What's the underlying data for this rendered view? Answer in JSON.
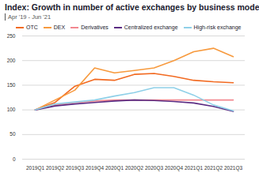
{
  "chart_data": {
    "type": "line",
    "title": "Index: Growth in number of active exchanges by business model",
    "subtitle": "Apr '19 - Jun '21",
    "categories": [
      "2019Q1",
      "2019Q2",
      "2019Q3",
      "2019Q4",
      "2020Q1",
      "2020Q2",
      "2020Q3",
      "2020Q4",
      "2021Q1",
      "2021Q2",
      "2021Q3"
    ],
    "series": [
      {
        "name": "OTC",
        "color": "#f26a21",
        "values": [
          100,
          115,
          148,
          162,
          160,
          172,
          174,
          168,
          160,
          157,
          155
        ]
      },
      {
        "name": "DEX",
        "color": "#f79a3e",
        "values": [
          100,
          120,
          140,
          185,
          175,
          180,
          185,
          200,
          218,
          225,
          208
        ]
      },
      {
        "name": "Derivatives",
        "color": "#f2878f",
        "values": [
          100,
          110,
          115,
          118,
          120,
          120,
          120,
          120,
          120,
          120,
          120
        ]
      },
      {
        "name": "Centralized exchange",
        "color": "#5b2c83",
        "values": [
          100,
          108,
          112,
          115,
          118,
          120,
          119,
          117,
          114,
          107,
          97
        ]
      },
      {
        "name": "High-risk exchange",
        "color": "#8fd0e8",
        "values": [
          100,
          112,
          116,
          120,
          128,
          135,
          145,
          145,
          130,
          110,
          98
        ]
      }
    ],
    "ylim": [
      0,
      250
    ],
    "yticks": [
      0,
      50,
      100,
      150,
      200,
      250
    ],
    "grid": true,
    "legend": "top"
  }
}
